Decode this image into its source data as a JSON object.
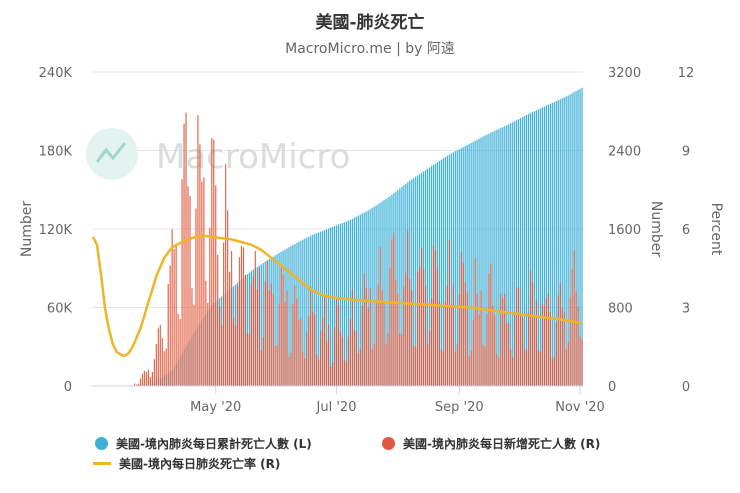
{
  "chart_data": {
    "type": "bar",
    "title": "美國-肺炎死亡",
    "subtitle": "MacroMicro.me | by 阿遠",
    "watermark": "MacroMicro",
    "x_ticks": [
      "May '20",
      "Jul '20",
      "Sep '20",
      "Nov '20"
    ],
    "axes": {
      "left": {
        "label": "Number",
        "ticks": [
          "0",
          "60K",
          "120K",
          "180K",
          "240K"
        ],
        "range": [
          0,
          240000
        ]
      },
      "right1": {
        "label": "Number",
        "ticks": [
          "0",
          "800",
          "1600",
          "2400",
          "3200"
        ],
        "range": [
          0,
          3200
        ]
      },
      "right2": {
        "label": "Percent",
        "ticks": [
          "0",
          "3",
          "6",
          "9",
          "12"
        ],
        "range": [
          0,
          12
        ]
      }
    },
    "date_range": [
      "2020-02-29",
      "2020-11-02"
    ],
    "series": [
      {
        "name": "美國-境內肺炎每日累計死亡人數 (L)",
        "type": "bar",
        "axis": "left",
        "color": "#3cb0d8",
        "knots": [
          [
            0,
            0
          ],
          [
            20,
            50
          ],
          [
            30,
            2000
          ],
          [
            40,
            12000
          ],
          [
            50,
            38000
          ],
          [
            60,
            62000
          ],
          [
            70,
            75000
          ],
          [
            80,
            88000
          ],
          [
            90,
            98000
          ],
          [
            100,
            107000
          ],
          [
            110,
            115000
          ],
          [
            120,
            121000
          ],
          [
            130,
            127000
          ],
          [
            140,
            135000
          ],
          [
            150,
            145000
          ],
          [
            160,
            157000
          ],
          [
            170,
            167000
          ],
          [
            180,
            177000
          ],
          [
            190,
            185000
          ],
          [
            200,
            193000
          ],
          [
            210,
            200000
          ],
          [
            220,
            208000
          ],
          [
            230,
            215000
          ],
          [
            240,
            222000
          ],
          [
            247,
            228000
          ]
        ]
      },
      {
        "name": "美國-境內肺炎每日新增死亡人數 (R)",
        "type": "bar",
        "axis": "right1",
        "color": "#e05a3e",
        "knots": [
          [
            0,
            0
          ],
          [
            20,
            5
          ],
          [
            28,
            150
          ],
          [
            35,
            600
          ],
          [
            40,
            1100
          ],
          [
            45,
            1800
          ],
          [
            50,
            2000
          ],
          [
            55,
            2200
          ],
          [
            60,
            1800
          ],
          [
            65,
            1600
          ],
          [
            70,
            1400
          ],
          [
            75,
            1200
          ],
          [
            80,
            1050
          ],
          [
            90,
            900
          ],
          [
            100,
            800
          ],
          [
            110,
            650
          ],
          [
            120,
            550
          ],
          [
            130,
            620
          ],
          [
            140,
            850
          ],
          [
            150,
            1050
          ],
          [
            160,
            1100
          ],
          [
            170,
            1050
          ],
          [
            180,
            950
          ],
          [
            190,
            850
          ],
          [
            200,
            800
          ],
          [
            210,
            780
          ],
          [
            220,
            760
          ],
          [
            230,
            780
          ],
          [
            240,
            850
          ],
          [
            247,
            950
          ]
        ]
      },
      {
        "name": "美國-境內每日肺炎死亡率 (R)",
        "type": "line",
        "axis": "right2",
        "color": "#f0b429",
        "knots": [
          [
            0,
            5.7
          ],
          [
            2,
            5.4
          ],
          [
            4,
            4.3
          ],
          [
            6,
            3.0
          ],
          [
            8,
            2.2
          ],
          [
            10,
            1.6
          ],
          [
            12,
            1.3
          ],
          [
            14,
            1.2
          ],
          [
            16,
            1.15
          ],
          [
            18,
            1.25
          ],
          [
            20,
            1.5
          ],
          [
            24,
            2.2
          ],
          [
            28,
            3.2
          ],
          [
            32,
            4.2
          ],
          [
            36,
            4.9
          ],
          [
            40,
            5.3
          ],
          [
            45,
            5.5
          ],
          [
            50,
            5.65
          ],
          [
            55,
            5.75
          ],
          [
            60,
            5.7
          ],
          [
            65,
            5.65
          ],
          [
            70,
            5.6
          ],
          [
            75,
            5.5
          ],
          [
            80,
            5.4
          ],
          [
            85,
            5.2
          ],
          [
            90,
            4.9
          ],
          [
            95,
            4.6
          ],
          [
            100,
            4.3
          ],
          [
            105,
            4.0
          ],
          [
            110,
            3.7
          ],
          [
            115,
            3.5
          ],
          [
            120,
            3.4
          ],
          [
            130,
            3.3
          ],
          [
            140,
            3.25
          ],
          [
            150,
            3.2
          ],
          [
            160,
            3.15
          ],
          [
            170,
            3.1
          ],
          [
            180,
            3.05
          ],
          [
            190,
            3.0
          ],
          [
            200,
            2.9
          ],
          [
            210,
            2.8
          ],
          [
            220,
            2.7
          ],
          [
            230,
            2.6
          ],
          [
            240,
            2.5
          ],
          [
            247,
            2.4
          ]
        ]
      }
    ],
    "legend": [
      "美國-境內肺炎每日累計死亡人數 (L)",
      "美國-境內肺炎每日新增死亡人數 (R)",
      "美國-境內每日肺炎死亡率 (R)"
    ]
  }
}
